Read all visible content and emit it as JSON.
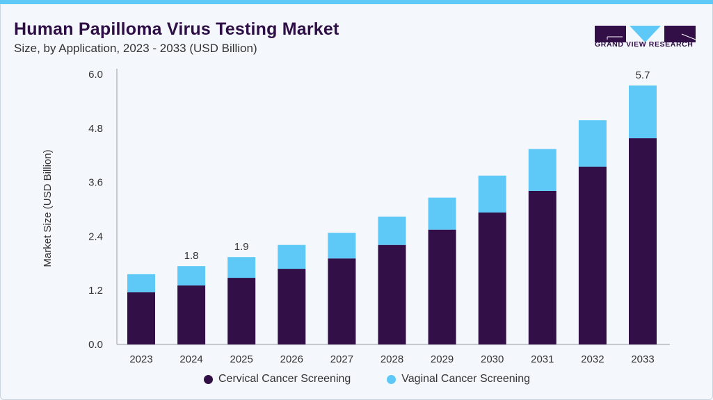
{
  "header": {
    "title": "Human Papilloma Virus Testing Market",
    "subtitle": "Size, by Application, 2023 - 2033 (USD Billion)"
  },
  "logo": {
    "text": "GRAND VIEW RESEARCH"
  },
  "colors": {
    "cervical": "#330f47",
    "vaginal": "#5ec8f7",
    "accent": "#5ec8f7"
  },
  "chart_data": {
    "type": "bar",
    "stacked": true,
    "title": "Human Papilloma Virus Testing Market",
    "subtitle": "Size, by Application, 2023 - 2033 (USD Billion)",
    "xlabel": "",
    "ylabel": "Market Size (USD Billion)",
    "ylim": [
      0,
      6.0
    ],
    "yticks": [
      "0.0",
      "1.2",
      "2.4",
      "3.6",
      "4.8",
      "6.0"
    ],
    "grid": false,
    "legend_position": "bottom",
    "categories": [
      "2023",
      "2024",
      "2025",
      "2026",
      "2027",
      "2028",
      "2029",
      "2030",
      "2031",
      "2032",
      "2033"
    ],
    "series": [
      {
        "name": "Cervical Cancer Screening",
        "color": "#330f47",
        "values": [
          1.16,
          1.31,
          1.48,
          1.68,
          1.91,
          2.21,
          2.55,
          2.93,
          3.41,
          3.95,
          4.58
        ]
      },
      {
        "name": "Vaginal Cancer Screening",
        "color": "#5ec8f7",
        "values": [
          0.4,
          0.43,
          0.46,
          0.53,
          0.57,
          0.63,
          0.71,
          0.82,
          0.93,
          1.03,
          1.17
        ]
      }
    ],
    "data_labels": [
      {
        "category": "2024",
        "text": "1.8"
      },
      {
        "category": "2025",
        "text": "1.9"
      },
      {
        "category": "2033",
        "text": "5.7"
      }
    ]
  }
}
